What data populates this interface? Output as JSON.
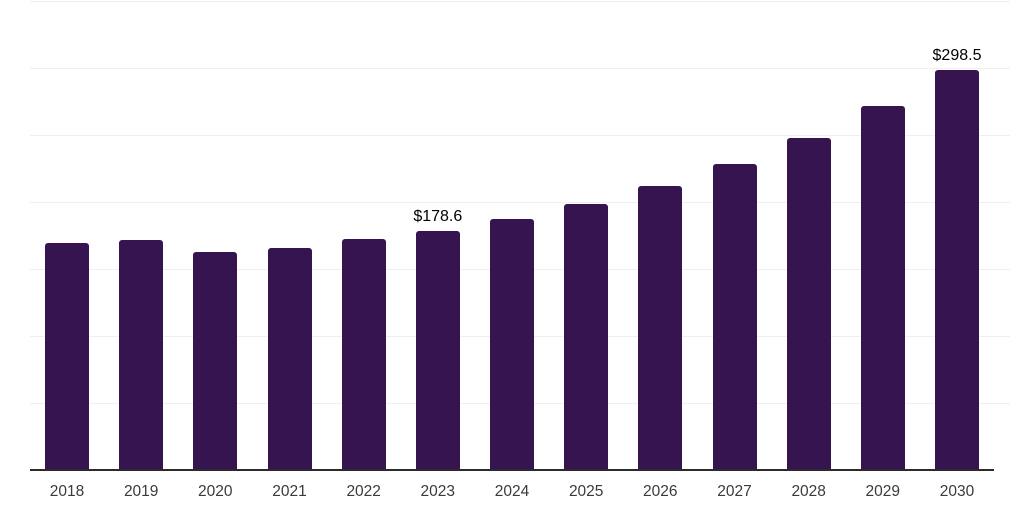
{
  "chart_data": {
    "type": "bar",
    "title": "",
    "xlabel": "",
    "ylabel": "",
    "categories": [
      "2018",
      "2019",
      "2020",
      "2021",
      "2022",
      "2023",
      "2024",
      "2025",
      "2026",
      "2027",
      "2028",
      "2029",
      "2030"
    ],
    "values": [
      169.8,
      171.9,
      163.0,
      166.0,
      172.5,
      178.6,
      187.5,
      198.8,
      212.2,
      228.7,
      248.0,
      272.0,
      298.5
    ],
    "point_labels": [
      "",
      "",
      "",
      "",
      "",
      "$178.6",
      "",
      "",
      "",
      "",
      "",
      "",
      "$298.5"
    ],
    "ylim": [
      0,
      350
    ],
    "gridline_step": 50,
    "grid": true,
    "legend_position": "none",
    "y_tick_labels_visible": false
  },
  "colors": {
    "bar": "#351450",
    "gridline": "#efefef",
    "axis": "#2b2b2b",
    "tick_label": "#3a3a3a",
    "value_label": "#000000",
    "background": "#ffffff"
  }
}
